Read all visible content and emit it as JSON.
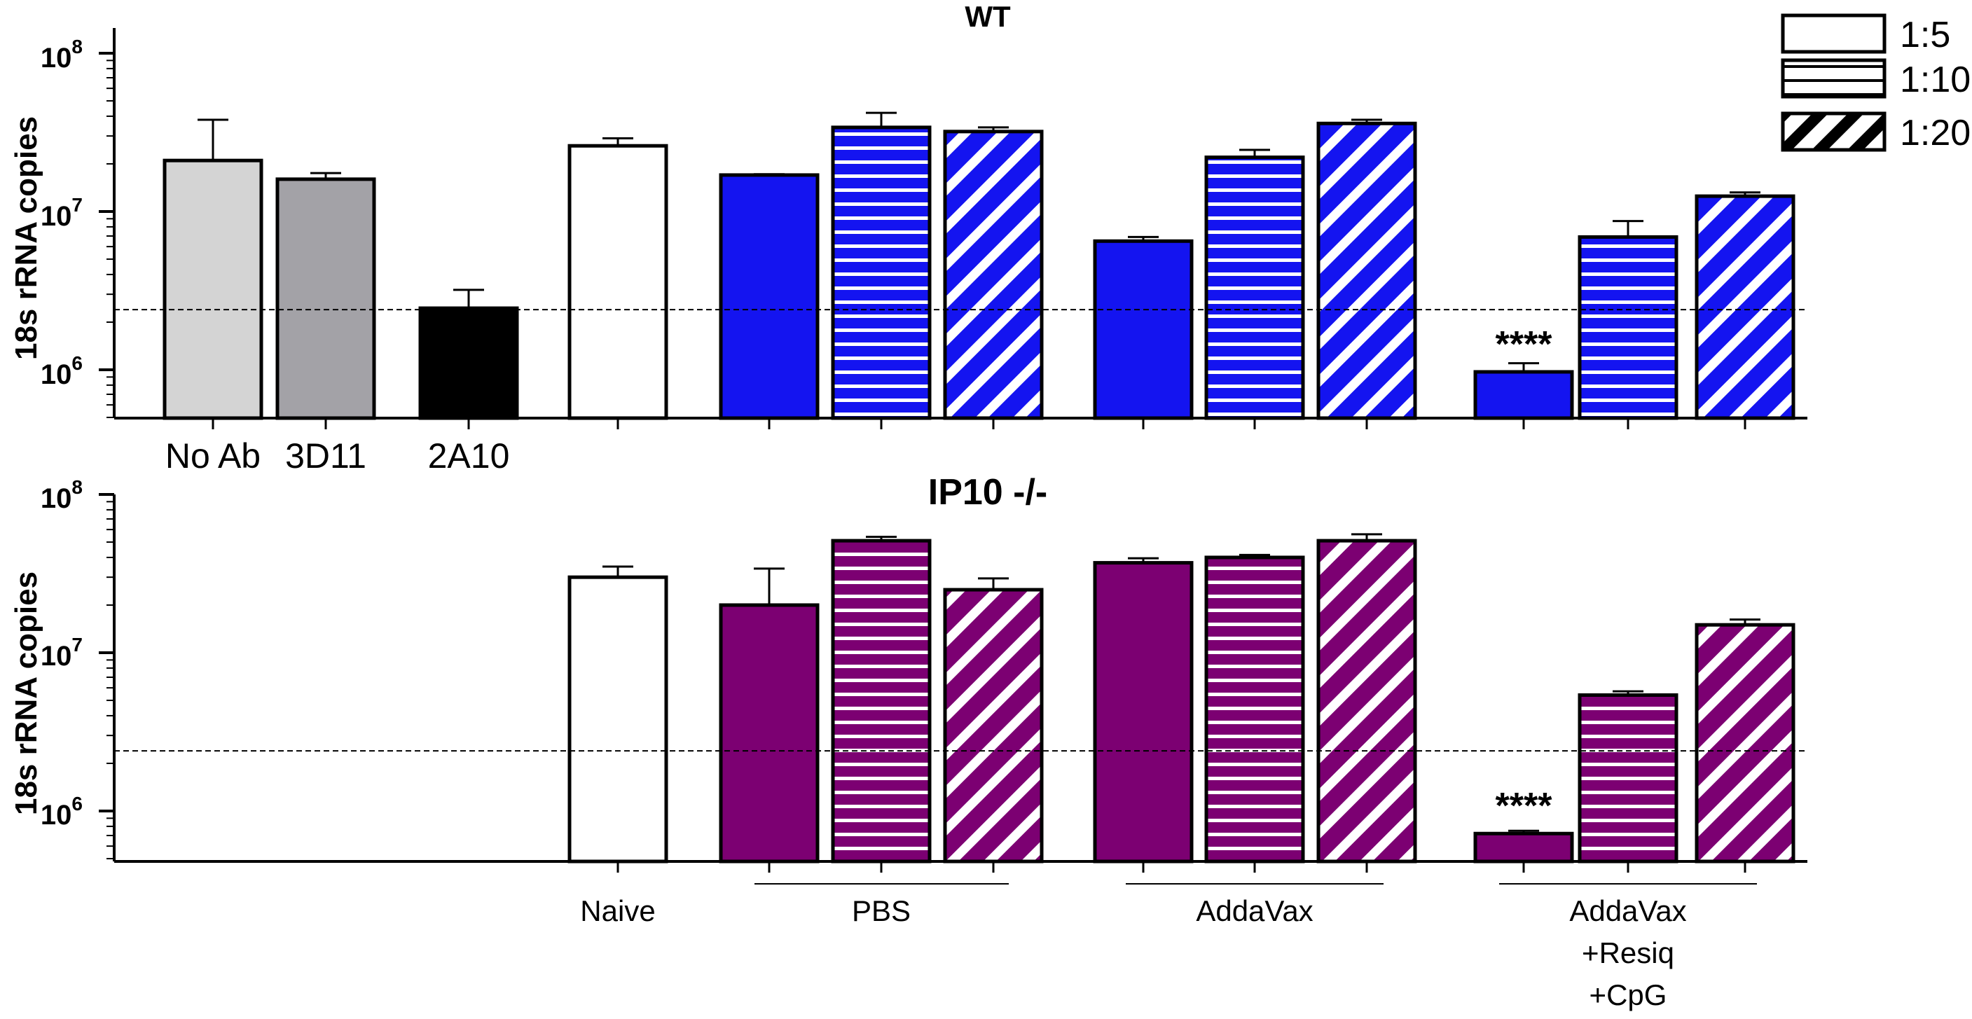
{
  "chart_data": {
    "type": "bar",
    "y_scale": "log",
    "ylim": [
      500000,
      100000000
    ],
    "legend": {
      "position": "top-right",
      "entries": [
        {
          "label": "1:5",
          "pattern": "solid"
        },
        {
          "label": "1:10",
          "pattern": "horizontal-stripes"
        },
        {
          "label": "1:20",
          "pattern": "diagonal-stripes"
        }
      ]
    },
    "colors": {
      "wt": "#1414f0",
      "ip10": "#7c0072",
      "no_ab": "#d4d4d4",
      "clone_3d11": "#a3a2a7",
      "clone_2a10": "#000000",
      "naive": "#ffffff"
    },
    "group_labels": {
      "naive": "Naive",
      "pbs": "PBS",
      "addavax": "AddaVax",
      "combo": [
        "AddaVax",
        "+Resiq",
        "+CpG"
      ]
    },
    "panels": [
      {
        "title": "WT",
        "ylabel": "18s rRNA copies",
        "threshold": 2400000,
        "tick_labels": [
          "10",
          "10",
          "10"
        ],
        "tick_exponents": [
          "8",
          "7",
          "6"
        ],
        "bars": [
          {
            "key": "no_ab",
            "label": "No Ab",
            "value": 21000000,
            "error": 38000000,
            "color": "#d4d4d4",
            "pattern": "solid"
          },
          {
            "key": "3d11",
            "label": "3D11",
            "value": 16000000,
            "error": 17500000,
            "color": "#a3a2a7",
            "pattern": "solid"
          },
          {
            "key": "2a10",
            "label": "2A10",
            "value": 2450000,
            "error": 3200000,
            "color": "#000000",
            "pattern": "solid"
          },
          {
            "key": "naive",
            "label": "",
            "value": 26000000,
            "error": 29000000,
            "color": "#ffffff",
            "pattern": "solid"
          },
          {
            "key": "pbs_5",
            "label": "",
            "value": 17000000,
            "error": 17200000,
            "color": "#1414f0",
            "pattern": "solid"
          },
          {
            "key": "pbs_10",
            "label": "",
            "value": 34000000,
            "error": 42000000,
            "color": "#1414f0",
            "pattern": "horizontal-stripes"
          },
          {
            "key": "pbs_20",
            "label": "",
            "value": 32000000,
            "error": 34000000,
            "color": "#1414f0",
            "pattern": "diagonal-stripes"
          },
          {
            "key": "addavax_5",
            "label": "",
            "value": 6500000,
            "error": 6900000,
            "color": "#1414f0",
            "pattern": "solid"
          },
          {
            "key": "addavax_10",
            "label": "",
            "value": 22000000,
            "error": 24500000,
            "color": "#1414f0",
            "pattern": "horizontal-stripes"
          },
          {
            "key": "addavax_20",
            "label": "",
            "value": 36000000,
            "error": 38000000,
            "color": "#1414f0",
            "pattern": "diagonal-stripes"
          },
          {
            "key": "combo_5",
            "label": "",
            "value": 970000,
            "error": 1100000,
            "color": "#1414f0",
            "pattern": "solid",
            "annotation": "****"
          },
          {
            "key": "combo_10",
            "label": "",
            "value": 6900000,
            "error": 8700000,
            "color": "#1414f0",
            "pattern": "horizontal-stripes"
          },
          {
            "key": "combo_20",
            "label": "",
            "value": 12500000,
            "error": 13200000,
            "color": "#1414f0",
            "pattern": "diagonal-stripes"
          }
        ]
      },
      {
        "title": "IP10 -/-",
        "ylabel": "18s rRNA copies",
        "threshold": 2400000,
        "tick_labels": [
          "10",
          "10",
          "10"
        ],
        "tick_exponents": [
          "8",
          "7",
          "6"
        ],
        "bars": [
          {
            "key": "naive",
            "label": "",
            "value": 30000000,
            "error": 35000000,
            "color": "#ffffff",
            "pattern": "solid"
          },
          {
            "key": "pbs_5",
            "label": "",
            "value": 20000000,
            "error": 34000000,
            "color": "#7c0072",
            "pattern": "solid"
          },
          {
            "key": "pbs_10",
            "label": "",
            "value": 51000000,
            "error": 54000000,
            "color": "#7c0072",
            "pattern": "horizontal-stripes"
          },
          {
            "key": "pbs_20",
            "label": "",
            "value": 25000000,
            "error": 29500000,
            "color": "#7c0072",
            "pattern": "diagonal-stripes"
          },
          {
            "key": "addavax_5",
            "label": "",
            "value": 37000000,
            "error": 39500000,
            "color": "#7c0072",
            "pattern": "solid"
          },
          {
            "key": "addavax_10",
            "label": "",
            "value": 40000000,
            "error": 41500000,
            "color": "#7c0072",
            "pattern": "horizontal-stripes"
          },
          {
            "key": "addavax_20",
            "label": "",
            "value": 51000000,
            "error": 56000000,
            "color": "#7c0072",
            "pattern": "diagonal-stripes"
          },
          {
            "key": "combo_5",
            "label": "",
            "value": 720000,
            "error": 750000,
            "color": "#7c0072",
            "pattern": "solid",
            "annotation": "****"
          },
          {
            "key": "combo_10",
            "label": "",
            "value": 5400000,
            "error": 5700000,
            "color": "#7c0072",
            "pattern": "horizontal-stripes"
          },
          {
            "key": "combo_20",
            "label": "",
            "value": 15000000,
            "error": 16200000,
            "color": "#7c0072",
            "pattern": "diagonal-stripes"
          }
        ]
      }
    ]
  }
}
